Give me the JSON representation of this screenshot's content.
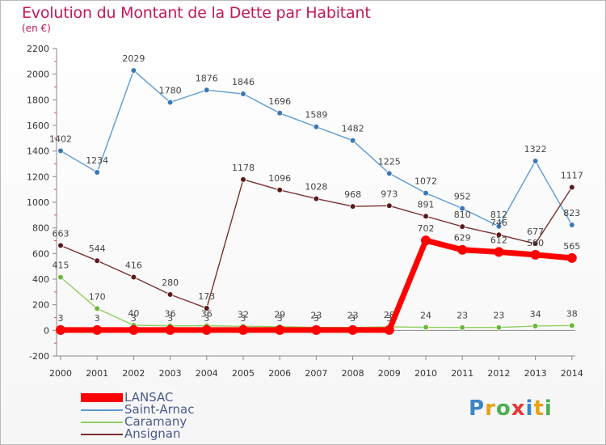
{
  "title": "Evolution du Montant de la Dette par Habitant",
  "subtitle": "(en €)",
  "logo": {
    "text": "Proxiti",
    "colors": [
      "#3a86c8",
      "#e8a11b",
      "#4caf50",
      "#e53935",
      "#3a86c8",
      "#e8a11b",
      "#4caf50"
    ]
  },
  "chart_data": {
    "type": "line",
    "x": [
      "2000",
      "2001",
      "2002",
      "2003",
      "2004",
      "2005",
      "2006",
      "2007",
      "2008",
      "2009",
      "2010",
      "2011",
      "2012",
      "2013",
      "2014"
    ],
    "ylim": [
      -200,
      2200
    ],
    "yticks": [
      -200,
      0,
      200,
      400,
      600,
      800,
      1000,
      1200,
      1400,
      1600,
      1800,
      2000,
      2200
    ],
    "grid": false,
    "legend_position": "bottom-left",
    "series": [
      {
        "name": "Saint-Arnac",
        "color": "#5b9bd5",
        "marker": "#3a78b8",
        "values": [
          1402,
          1234,
          2029,
          1780,
          1876,
          1846,
          1696,
          1589,
          1482,
          1225,
          1072,
          952,
          812,
          1322,
          823
        ],
        "labels": [
          "1402",
          "1234",
          "2029",
          "1780",
          "1876",
          "1846",
          "1696",
          "1589",
          "1482",
          "1225",
          "1072",
          "952",
          "812",
          "1322",
          "823"
        ]
      },
      {
        "name": "Ansignan",
        "color": "#7a3030",
        "marker": "#5a1a1a",
        "values": [
          663,
          544,
          416,
          280,
          173,
          1178,
          1096,
          1028,
          968,
          973,
          891,
          810,
          746,
          677,
          1117
        ],
        "labels": [
          "663",
          "544",
          "416",
          "280",
          "173",
          "1178",
          "1096",
          "1028",
          "968",
          "973",
          "891",
          "810",
          "746",
          "677",
          "1117"
        ]
      },
      {
        "name": "Caramany",
        "color": "#90d060",
        "marker": "#6ab83a",
        "values": [
          415,
          170,
          40,
          36,
          36,
          32,
          29,
          23,
          23,
          28,
          24,
          23,
          23,
          34,
          38
        ],
        "labels": [
          "415",
          "170",
          "40",
          "36",
          "36",
          "32",
          "29",
          "23",
          "23",
          "28",
          "24",
          "23",
          "23",
          "34",
          "38"
        ]
      },
      {
        "name": "LANSAC",
        "color": "#ff0000",
        "marker": "#ff0000",
        "values": [
          3,
          3,
          3,
          3,
          3,
          3,
          3,
          3,
          3,
          3,
          702,
          629,
          612,
          590,
          565
        ],
        "labels": [
          "3",
          "3",
          "3",
          "3",
          "3",
          "3",
          "3",
          "3",
          "3",
          "3",
          "702",
          "629",
          "612",
          "590",
          "565"
        ]
      }
    ],
    "legend": [
      "LANSAC",
      "Saint-Arnac",
      "Caramany",
      "Ansignan"
    ]
  }
}
